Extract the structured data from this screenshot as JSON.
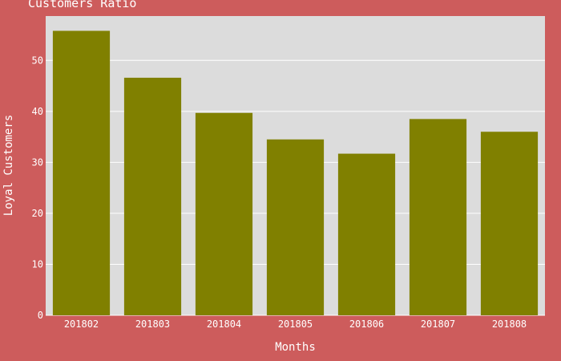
{
  "chart_data": {
    "type": "bar",
    "title": "Customers Ratio",
    "xlabel": "Months",
    "ylabel": "Loyal Customers",
    "categories": [
      "201802",
      "201803",
      "201804",
      "201805",
      "201806",
      "201807",
      "201808"
    ],
    "values": [
      55.8,
      46.6,
      39.7,
      34.5,
      31.7,
      38.5,
      36.0
    ],
    "ylim": [
      0,
      58.7
    ],
    "yticks": [
      0,
      10,
      20,
      30,
      40,
      50
    ],
    "grid": true,
    "legend": "none",
    "colors": {
      "background": "#cd5c5c",
      "plot_background": "#dcdcdc",
      "bar": "#808000",
      "grid": "#ffffff",
      "text": "#ffffff"
    }
  }
}
